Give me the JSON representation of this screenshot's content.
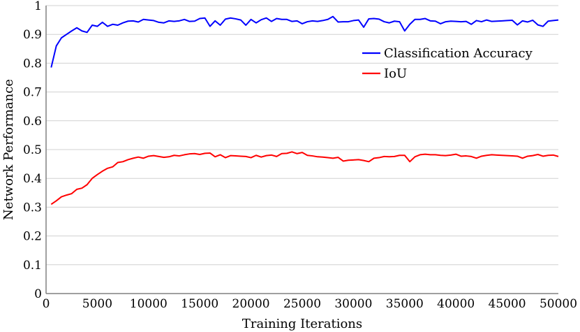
{
  "chart_data": {
    "type": "line",
    "title": "",
    "xlabel": "Training Iterations",
    "ylabel": "Network Performance",
    "xlim": [
      0,
      50000
    ],
    "ylim": [
      0,
      1
    ],
    "xticks": [
      0,
      5000,
      10000,
      15000,
      20000,
      25000,
      30000,
      35000,
      40000,
      45000,
      50000
    ],
    "yticks": [
      0,
      0.1,
      0.2,
      0.3,
      0.4,
      0.5,
      0.6,
      0.7,
      0.8,
      0.9,
      1
    ],
    "xtick_labels": [
      "0",
      "5000",
      "10000",
      "15000",
      "20000",
      "25000",
      "30000",
      "35000",
      "40000",
      "45000",
      "50000"
    ],
    "ytick_labels": [
      "0",
      "0.1",
      "0.2",
      "0.3",
      "0.4",
      "0.5",
      "0.6",
      "0.7",
      "0.8",
      "0.9",
      "1"
    ],
    "grid": "horizontal",
    "legend_position": "top-right",
    "x": [
      500,
      1000,
      1500,
      2000,
      2500,
      3000,
      3500,
      4000,
      4500,
      5000,
      5500,
      6000,
      6500,
      7000,
      7500,
      8000,
      8500,
      9000,
      9500,
      10000,
      10500,
      11000,
      11500,
      12000,
      12500,
      13000,
      13500,
      14000,
      14500,
      15000,
      15500,
      16000,
      16500,
      17000,
      17500,
      18000,
      18500,
      19000,
      19500,
      20000,
      20500,
      21000,
      21500,
      22000,
      22500,
      23000,
      23500,
      24000,
      24500,
      25000,
      25500,
      26000,
      26500,
      27000,
      27500,
      28000,
      28500,
      29000,
      29500,
      30000,
      30500,
      31000,
      31500,
      32000,
      32500,
      33000,
      33500,
      34000,
      34500,
      35000,
      35500,
      36000,
      36500,
      37000,
      37500,
      38000,
      38500,
      39000,
      39500,
      40000,
      40500,
      41000,
      41500,
      42000,
      42500,
      43000,
      43500,
      44000,
      44500,
      45000,
      45500,
      46000,
      46500,
      47000,
      47500,
      48000,
      48500,
      49000,
      49500,
      50000
    ],
    "series": [
      {
        "name": "Classification Accuracy",
        "color": "#0000ff",
        "values": [
          0.785,
          0.86,
          0.888,
          0.9,
          0.912,
          0.923,
          0.912,
          0.907,
          0.932,
          0.928,
          0.942,
          0.928,
          0.935,
          0.932,
          0.94,
          0.946,
          0.947,
          0.943,
          0.952,
          0.95,
          0.948,
          0.942,
          0.94,
          0.947,
          0.945,
          0.947,
          0.952,
          0.945,
          0.946,
          0.955,
          0.957,
          0.928,
          0.947,
          0.932,
          0.953,
          0.957,
          0.954,
          0.95,
          0.932,
          0.952,
          0.94,
          0.951,
          0.957,
          0.945,
          0.955,
          0.952,
          0.952,
          0.945,
          0.947,
          0.937,
          0.944,
          0.947,
          0.945,
          0.948,
          0.952,
          0.962,
          0.943,
          0.944,
          0.944,
          0.948,
          0.95,
          0.925,
          0.954,
          0.955,
          0.953,
          0.944,
          0.94,
          0.946,
          0.944,
          0.912,
          0.935,
          0.952,
          0.952,
          0.955,
          0.947,
          0.946,
          0.937,
          0.944,
          0.946,
          0.945,
          0.944,
          0.945,
          0.935,
          0.948,
          0.944,
          0.95,
          0.945,
          0.946,
          0.947,
          0.948,
          0.949,
          0.933,
          0.947,
          0.943,
          0.949,
          0.933,
          0.928,
          0.946,
          0.948,
          0.95
        ]
      },
      {
        "name": "IoU",
        "color": "#ff0000",
        "values": [
          0.31,
          0.322,
          0.336,
          0.342,
          0.347,
          0.362,
          0.366,
          0.378,
          0.4,
          0.413,
          0.425,
          0.435,
          0.44,
          0.455,
          0.458,
          0.465,
          0.47,
          0.474,
          0.47,
          0.477,
          0.479,
          0.476,
          0.473,
          0.475,
          0.48,
          0.478,
          0.482,
          0.485,
          0.486,
          0.483,
          0.487,
          0.488,
          0.475,
          0.482,
          0.472,
          0.479,
          0.478,
          0.477,
          0.476,
          0.472,
          0.48,
          0.474,
          0.479,
          0.481,
          0.476,
          0.486,
          0.487,
          0.492,
          0.486,
          0.49,
          0.48,
          0.478,
          0.475,
          0.474,
          0.472,
          0.47,
          0.473,
          0.46,
          0.463,
          0.464,
          0.465,
          0.462,
          0.458,
          0.47,
          0.472,
          0.476,
          0.475,
          0.476,
          0.48,
          0.48,
          0.458,
          0.475,
          0.482,
          0.484,
          0.482,
          0.482,
          0.48,
          0.479,
          0.481,
          0.484,
          0.477,
          0.478,
          0.476,
          0.47,
          0.477,
          0.48,
          0.482,
          0.481,
          0.48,
          0.479,
          0.478,
          0.477,
          0.47,
          0.477,
          0.479,
          0.483,
          0.477,
          0.48,
          0.481,
          0.476
        ]
      }
    ]
  }
}
